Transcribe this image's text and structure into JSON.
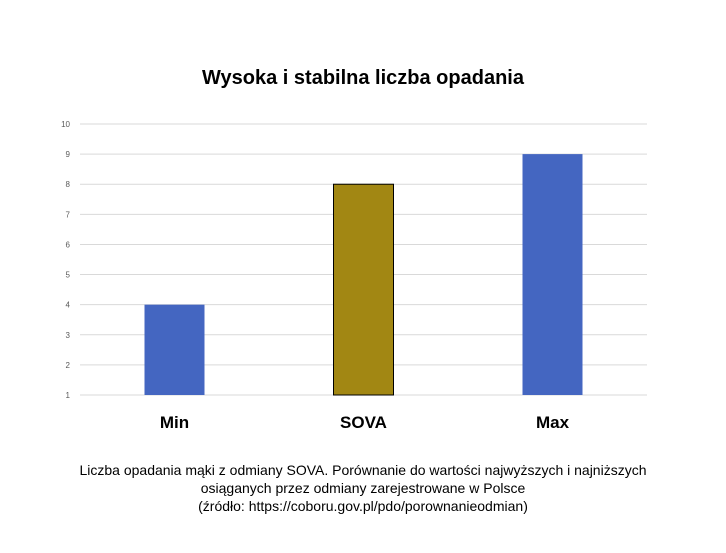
{
  "chart_data": {
    "type": "bar",
    "title": "Wysoka i stabilna liczba opadania",
    "categories": [
      "Min",
      "SOVA",
      "Max"
    ],
    "values": [
      4,
      8,
      9
    ],
    "bar_colors": [
      "#4466c1",
      "#a28713",
      "#4466c1"
    ],
    "y_ticks": [
      "1",
      "2",
      "3",
      "4",
      "5",
      "6",
      "7",
      "8",
      "9",
      "10"
    ],
    "ylim": [
      1,
      10
    ],
    "grid": true,
    "xlabel": "",
    "ylabel": ""
  },
  "caption": {
    "line1": "Liczba opadania mąki z odmiany SOVA. Porównanie do wartości najwyższych i najniższych",
    "line2": "osiąganych przez odmiany zarejestrowane w Polsce",
    "line3": "(źródło: https://coboru.gov.pl/pdo/porownanieodmian)"
  }
}
